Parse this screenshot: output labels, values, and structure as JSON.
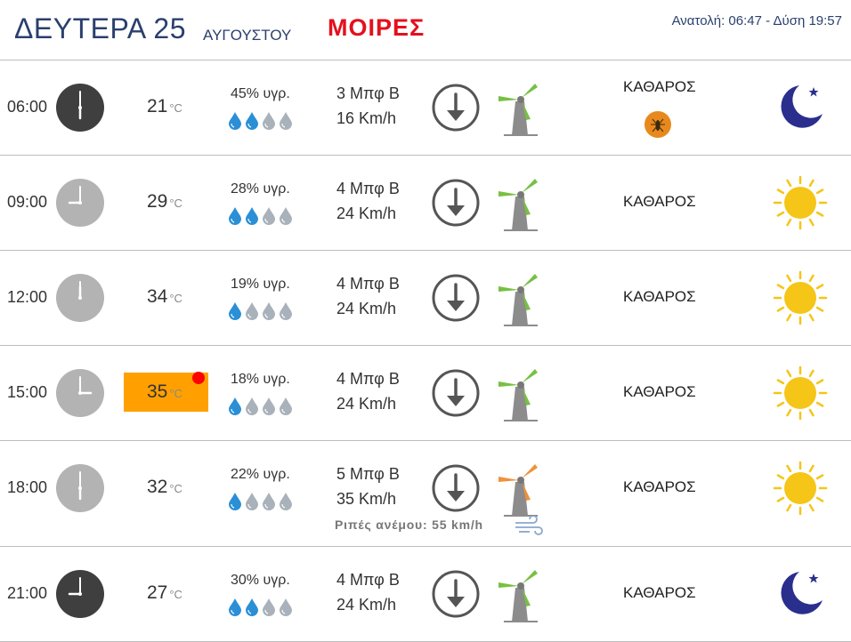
{
  "header": {
    "day": "ΔΕΥΤΕΡΑ 25",
    "month": "ΑΥΓΟΥΣΤΟΥ",
    "location": "ΜΟΙΡΕΣ",
    "sun": "Ανατολή: 06:47  - Δύση 19:57"
  },
  "rows": [
    {
      "time": "06:00",
      "temp": "21",
      "unit": "°C",
      "humidity": "45% υγρ.",
      "drops_filled": 2,
      "beaufort": "3 Μπφ Β",
      "speed": "16 Km/h",
      "sky": "ΚΑΘΑΡΟΣ",
      "icon": "moon-icon",
      "clock_icon": "clock-dark-icon",
      "extra_icon": "mosquito-icon"
    },
    {
      "time": "09:00",
      "temp": "29",
      "unit": "°C",
      "humidity": "28% υγρ.",
      "drops_filled": 2,
      "beaufort": "4 Μπφ Β",
      "speed": "24 Km/h",
      "sky": "ΚΑΘΑΡΟΣ",
      "icon": "sun-icon",
      "clock_icon": "clock-light-icon"
    },
    {
      "time": "12:00",
      "temp": "34",
      "unit": "°C",
      "humidity": "19% υγρ.",
      "drops_filled": 1,
      "beaufort": "4 Μπφ Β",
      "speed": "24 Km/h",
      "sky": "ΚΑΘΑΡΟΣ",
      "icon": "sun-icon",
      "clock_icon": "clock-light-icon"
    },
    {
      "time": "15:00",
      "temp": "35",
      "unit": "°C",
      "humidity": "18% υγρ.",
      "drops_filled": 1,
      "beaufort": "4 Μπφ Β",
      "speed": "24 Km/h",
      "sky": "ΚΑΘΑΡΟΣ",
      "icon": "sun-icon",
      "clock_icon": "clock-light-icon",
      "hot": true
    },
    {
      "time": "18:00",
      "temp": "32",
      "unit": "°C",
      "humidity": "22% υγρ.",
      "drops_filled": 1,
      "beaufort": "5 Μπφ Β",
      "speed": "35 Km/h",
      "sky": "ΚΑΘΑΡΟΣ",
      "icon": "sun-icon",
      "clock_icon": "clock-light-icon",
      "gust": "Ριπές ανέμου: 55 km/h",
      "turbine_color": "#f0923a"
    },
    {
      "time": "21:00",
      "temp": "27",
      "unit": "°C",
      "humidity": "30% υγρ.",
      "drops_filled": 2,
      "beaufort": "4 Μπφ Β",
      "speed": "24 Km/h",
      "sky": "ΚΑΘΑΡΟΣ",
      "icon": "moon-icon",
      "clock_icon": "clock-dark-icon"
    }
  ],
  "colors": {
    "header_text": "#2b3f6e",
    "location": "#e4101c",
    "hot_bg": "#ffa000",
    "drop_filled": "#2b8fd6",
    "drop_empty": "#a9b1bb",
    "clock_dark": "#3f3f3f",
    "clock_light": "#b3b3b3",
    "turbine_normal": "#78c043",
    "turbine_strong": "#f0923a",
    "sun": "#f5c518",
    "moon": "#2a2e8c"
  }
}
